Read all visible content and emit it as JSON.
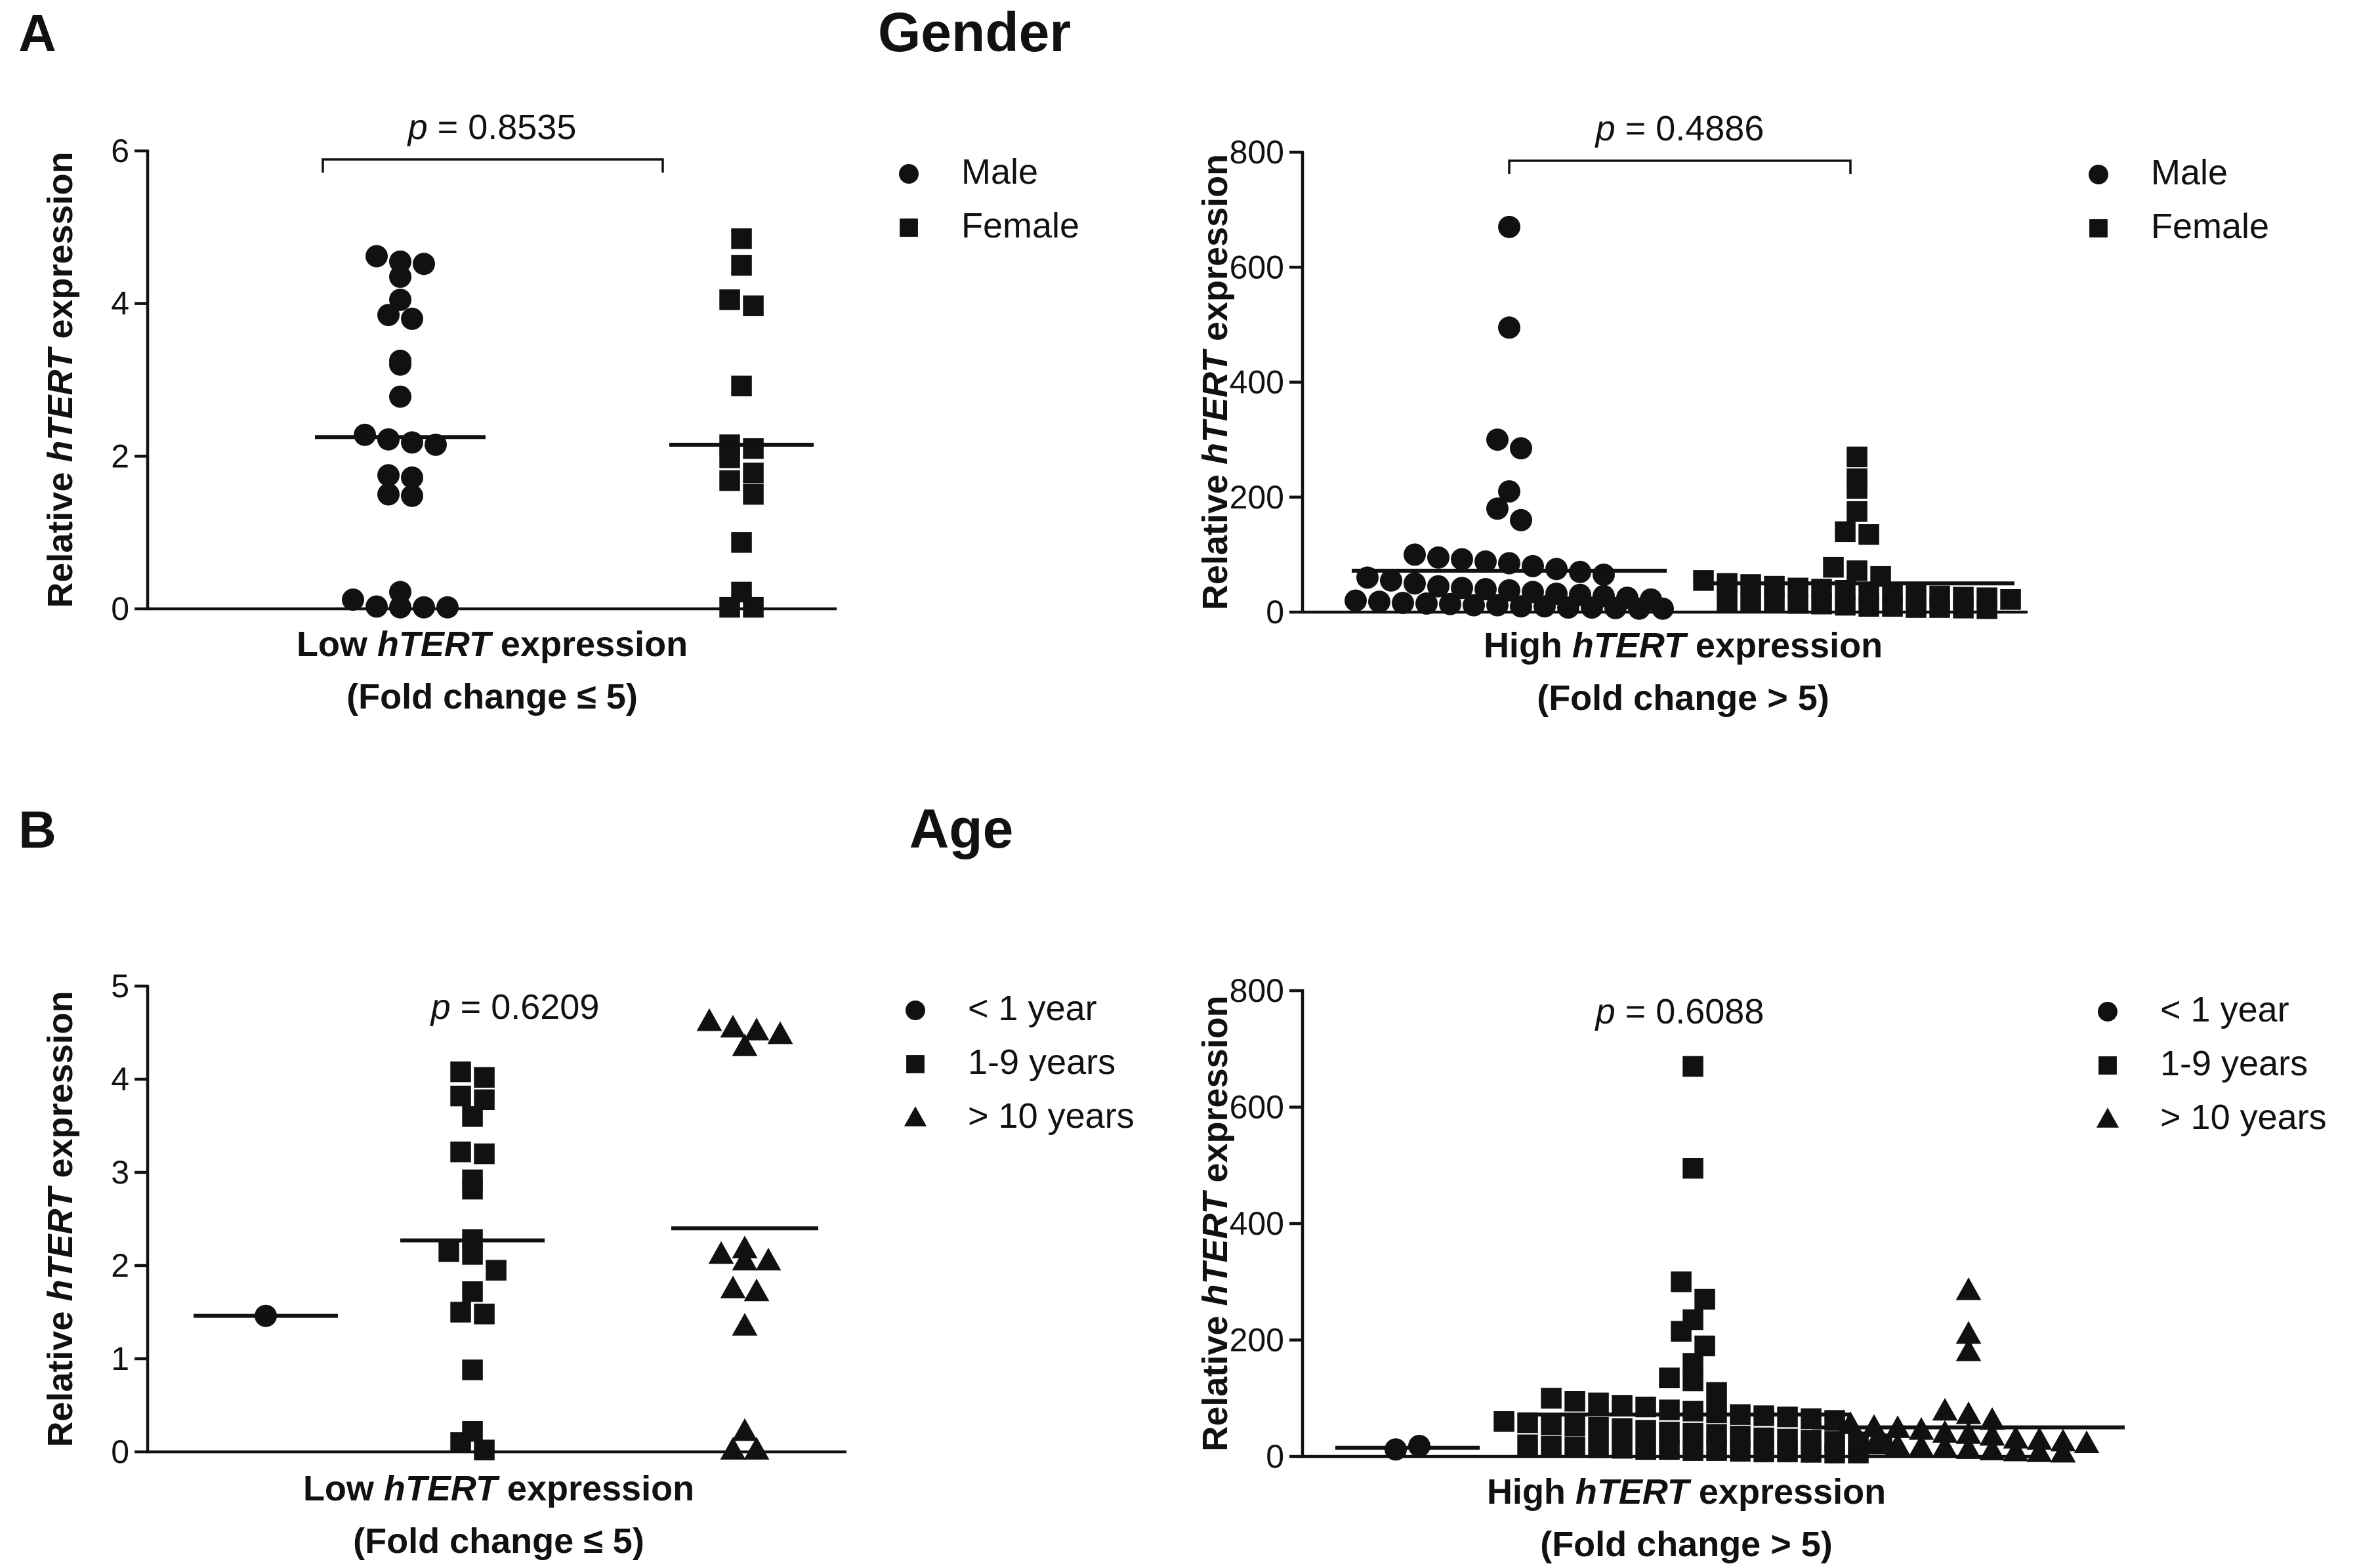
{
  "figure": {
    "panel_a_letter": "A",
    "panel_a_title": "Gender",
    "panel_b_letter": "B",
    "panel_b_title": "Age",
    "ylabel_prefix": "Relative ",
    "ylabel_gene": "hTERT",
    "ylabel_suffix": " expression",
    "low_xlabel_prefix": "Low ",
    "high_xlabel_prefix": "High ",
    "xlabel_gene": "hTERT",
    "xlabel_suffix": " expression",
    "low_xlabel_line2": "(Fold change ≤ 5)",
    "high_xlabel_line2": "(Fold change > 5)",
    "p_symbol": "p",
    "p_equals": " = ",
    "legend_gender": [
      "Male",
      "Female"
    ],
    "legend_age": [
      "< 1 year",
      "1-9 years",
      "> 10 years"
    ]
  },
  "chart_data": [
    {
      "type": "scatter",
      "title": "Gender",
      "panel": "A",
      "xlabel": "Low hTERT expression (Fold change ≤ 5)",
      "ylabel": "Relative hTERT expression",
      "ylim": [
        0,
        6
      ],
      "yticks": [
        0,
        2,
        4,
        6
      ],
      "p_value": "0.8535",
      "series": [
        {
          "name": "Male",
          "marker": "circle",
          "median": 2.25,
          "values": [
            4.62,
            4.55,
            4.52,
            4.35,
            4.05,
            3.85,
            3.8,
            3.25,
            3.2,
            2.78,
            2.28,
            2.22,
            2.18,
            2.15,
            1.75,
            1.72,
            1.5,
            1.48,
            0.22,
            0.12,
            0.03,
            0.02,
            0.02,
            0.02
          ]
        },
        {
          "name": "Female",
          "marker": "square",
          "median": 2.15,
          "values": [
            4.85,
            4.5,
            4.05,
            3.97,
            2.92,
            2.15,
            2.1,
            1.98,
            1.78,
            1.68,
            1.5,
            0.87,
            0.22,
            0.02,
            0.02
          ]
        }
      ]
    },
    {
      "type": "scatter",
      "title": "Gender",
      "panel": "A",
      "xlabel": "High hTERT expression (Fold change > 5)",
      "ylabel": "Relative hTERT expression",
      "ylim": [
        0,
        800
      ],
      "yticks": [
        0,
        200,
        400,
        600,
        800
      ],
      "p_value": "0.4886",
      "series": [
        {
          "name": "Male",
          "marker": "circle",
          "median": 72,
          "values": [
            670,
            495,
            300,
            285,
            210,
            180,
            160,
            100,
            95,
            92,
            88,
            85,
            80,
            75,
            70,
            65,
            60,
            55,
            50,
            45,
            42,
            40,
            38,
            35,
            32,
            30,
            28,
            25,
            22,
            20,
            18,
            16,
            15,
            14,
            12,
            12,
            10,
            10,
            8,
            8,
            7,
            6,
            6
          ]
        },
        {
          "name": "Female",
          "marker": "square",
          "median": 50,
          "values": [
            270,
            232,
            215,
            175,
            140,
            135,
            78,
            72,
            62,
            55,
            50,
            48,
            45,
            42,
            40,
            38,
            35,
            32,
            30,
            28,
            26,
            25,
            22,
            20,
            18,
            16,
            15,
            14,
            12,
            10,
            10,
            8,
            8,
            7,
            6
          ]
        }
      ]
    },
    {
      "type": "scatter",
      "title": "Age",
      "panel": "B",
      "xlabel": "Low hTERT expression (Fold change ≤ 5)",
      "ylabel": "Relative hTERT expression",
      "ylim": [
        0,
        5
      ],
      "yticks": [
        0,
        1,
        2,
        3,
        4,
        5
      ],
      "p_value": "0.6209",
      "series": [
        {
          "name": "< 1 year",
          "marker": "circle",
          "median": 1.46,
          "values": [
            1.46
          ]
        },
        {
          "name": "1-9 years",
          "marker": "square",
          "median": 2.27,
          "values": [
            4.08,
            4.02,
            3.82,
            3.78,
            3.6,
            3.22,
            3.2,
            2.92,
            2.82,
            2.28,
            2.15,
            2.12,
            1.95,
            1.72,
            1.5,
            1.48,
            0.88,
            0.22,
            0.1,
            0.02
          ]
        },
        {
          "name": "> 10 years",
          "marker": "triangle",
          "median": 2.4,
          "values": [
            4.62,
            4.55,
            4.52,
            4.48,
            4.35,
            2.18,
            2.12,
            2.05,
            2.05,
            1.75,
            1.72,
            1.35,
            0.22,
            0.02,
            0.02
          ]
        }
      ]
    },
    {
      "type": "scatter",
      "title": "Age",
      "panel": "B",
      "xlabel": "High hTERT expression (Fold change > 5)",
      "ylabel": "Relative hTERT expression",
      "ylim": [
        0,
        800
      ],
      "yticks": [
        0,
        200,
        400,
        600,
        800
      ],
      "p_value": "0.6088",
      "series": [
        {
          "name": "< 1 year",
          "marker": "circle",
          "median": 15,
          "values": [
            12,
            18
          ]
        },
        {
          "name": "1-9 years",
          "marker": "square",
          "median": 72,
          "values": [
            670,
            495,
            300,
            270,
            235,
            215,
            190,
            160,
            135,
            130,
            110,
            100,
            95,
            92,
            88,
            85,
            80,
            78,
            75,
            72,
            70,
            68,
            65,
            62,
            60,
            58,
            55,
            52,
            50,
            48,
            45,
            42,
            40,
            38,
            35,
            32,
            30,
            28,
            26,
            25,
            22,
            20,
            18,
            16,
            15,
            14,
            12,
            12,
            10,
            10,
            9,
            8,
            8,
            7,
            6,
            6
          ]
        },
        {
          "name": "> 10 years",
          "marker": "triangle",
          "median": 50,
          "values": [
            285,
            210,
            180,
            78,
            72,
            62,
            55,
            50,
            48,
            45,
            40,
            38,
            35,
            30,
            28,
            25,
            22,
            20,
            18,
            16,
            15,
            12,
            10,
            8,
            7,
            6
          ]
        }
      ]
    }
  ]
}
